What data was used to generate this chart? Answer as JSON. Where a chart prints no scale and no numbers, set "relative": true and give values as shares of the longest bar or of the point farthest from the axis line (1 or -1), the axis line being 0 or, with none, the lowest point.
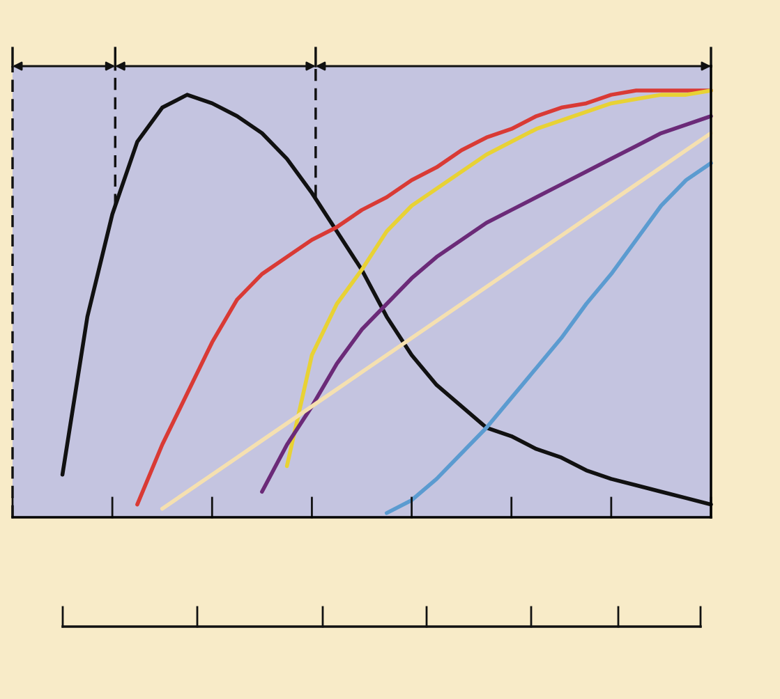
{
  "chart_data": {
    "type": "line",
    "relative": true,
    "line_style": "solid",
    "categories": [
      null,
      null,
      null,
      null,
      null,
      null,
      null,
      null,
      null,
      null,
      null,
      null,
      null,
      null,
      null,
      null,
      null,
      null,
      null,
      null,
      null,
      null,
      null,
      null,
      null,
      null,
      null,
      null,
      null
    ],
    "series": [
      {
        "color": "#111111",
        "values": [
          null,
          null,
          0.1,
          0.47,
          0.71,
          0.88,
          0.96,
          0.99,
          0.97,
          0.94,
          0.9,
          0.84,
          0.76,
          0.67,
          0.58,
          0.47,
          0.38,
          0.31,
          0.26,
          0.21,
          0.19,
          0.16,
          0.14,
          0.11,
          0.09,
          0.075,
          0.06,
          0.045,
          0.03
        ]
      },
      {
        "color": "#d93a35",
        "values": [
          null,
          null,
          null,
          null,
          null,
          0.03,
          0.17,
          0.29,
          0.41,
          0.51,
          0.57,
          0.61,
          0.65,
          0.68,
          0.72,
          0.75,
          0.79,
          0.82,
          0.86,
          0.89,
          0.91,
          0.94,
          0.96,
          0.97,
          0.99,
          1.0,
          1.0,
          1.0,
          1.0
        ]
      },
      {
        "color": "#e8d234",
        "values": [
          null,
          null,
          null,
          null,
          null,
          null,
          null,
          null,
          null,
          null,
          null,
          0.12,
          0.38,
          0.5,
          0.58,
          0.67,
          0.73,
          0.77,
          0.81,
          0.85,
          0.88,
          0.91,
          0.93,
          0.95,
          0.97,
          0.98,
          0.99,
          0.99,
          1.0
        ]
      },
      {
        "color": "#6b2a78",
        "values": [
          null,
          null,
          null,
          null,
          null,
          null,
          null,
          null,
          null,
          null,
          0.06,
          0.17,
          0.26,
          0.36,
          0.44,
          0.5,
          0.56,
          0.61,
          0.65,
          0.69,
          0.72,
          0.75,
          0.78,
          0.81,
          0.84,
          0.87,
          0.9,
          0.92,
          0.94
        ]
      },
      {
        "color": "#f5e0b0",
        "values": [
          null,
          null,
          null,
          null,
          null,
          null,
          0.02,
          0.06,
          0.1,
          0.14,
          0.18,
          0.22,
          0.26,
          0.3,
          0.34,
          0.38,
          0.42,
          0.46,
          0.5,
          0.54,
          0.58,
          0.62,
          0.66,
          0.7,
          0.74,
          0.78,
          0.82,
          0.86,
          0.9
        ]
      },
      {
        "color": "#5b9bd0",
        "values": [
          null,
          null,
          null,
          null,
          null,
          null,
          null,
          null,
          null,
          null,
          null,
          null,
          null,
          null,
          null,
          0.01,
          0.04,
          0.09,
          0.15,
          0.21,
          0.28,
          0.35,
          0.42,
          0.5,
          0.57,
          0.65,
          0.73,
          0.79,
          0.83
        ]
      }
    ]
  }
}
